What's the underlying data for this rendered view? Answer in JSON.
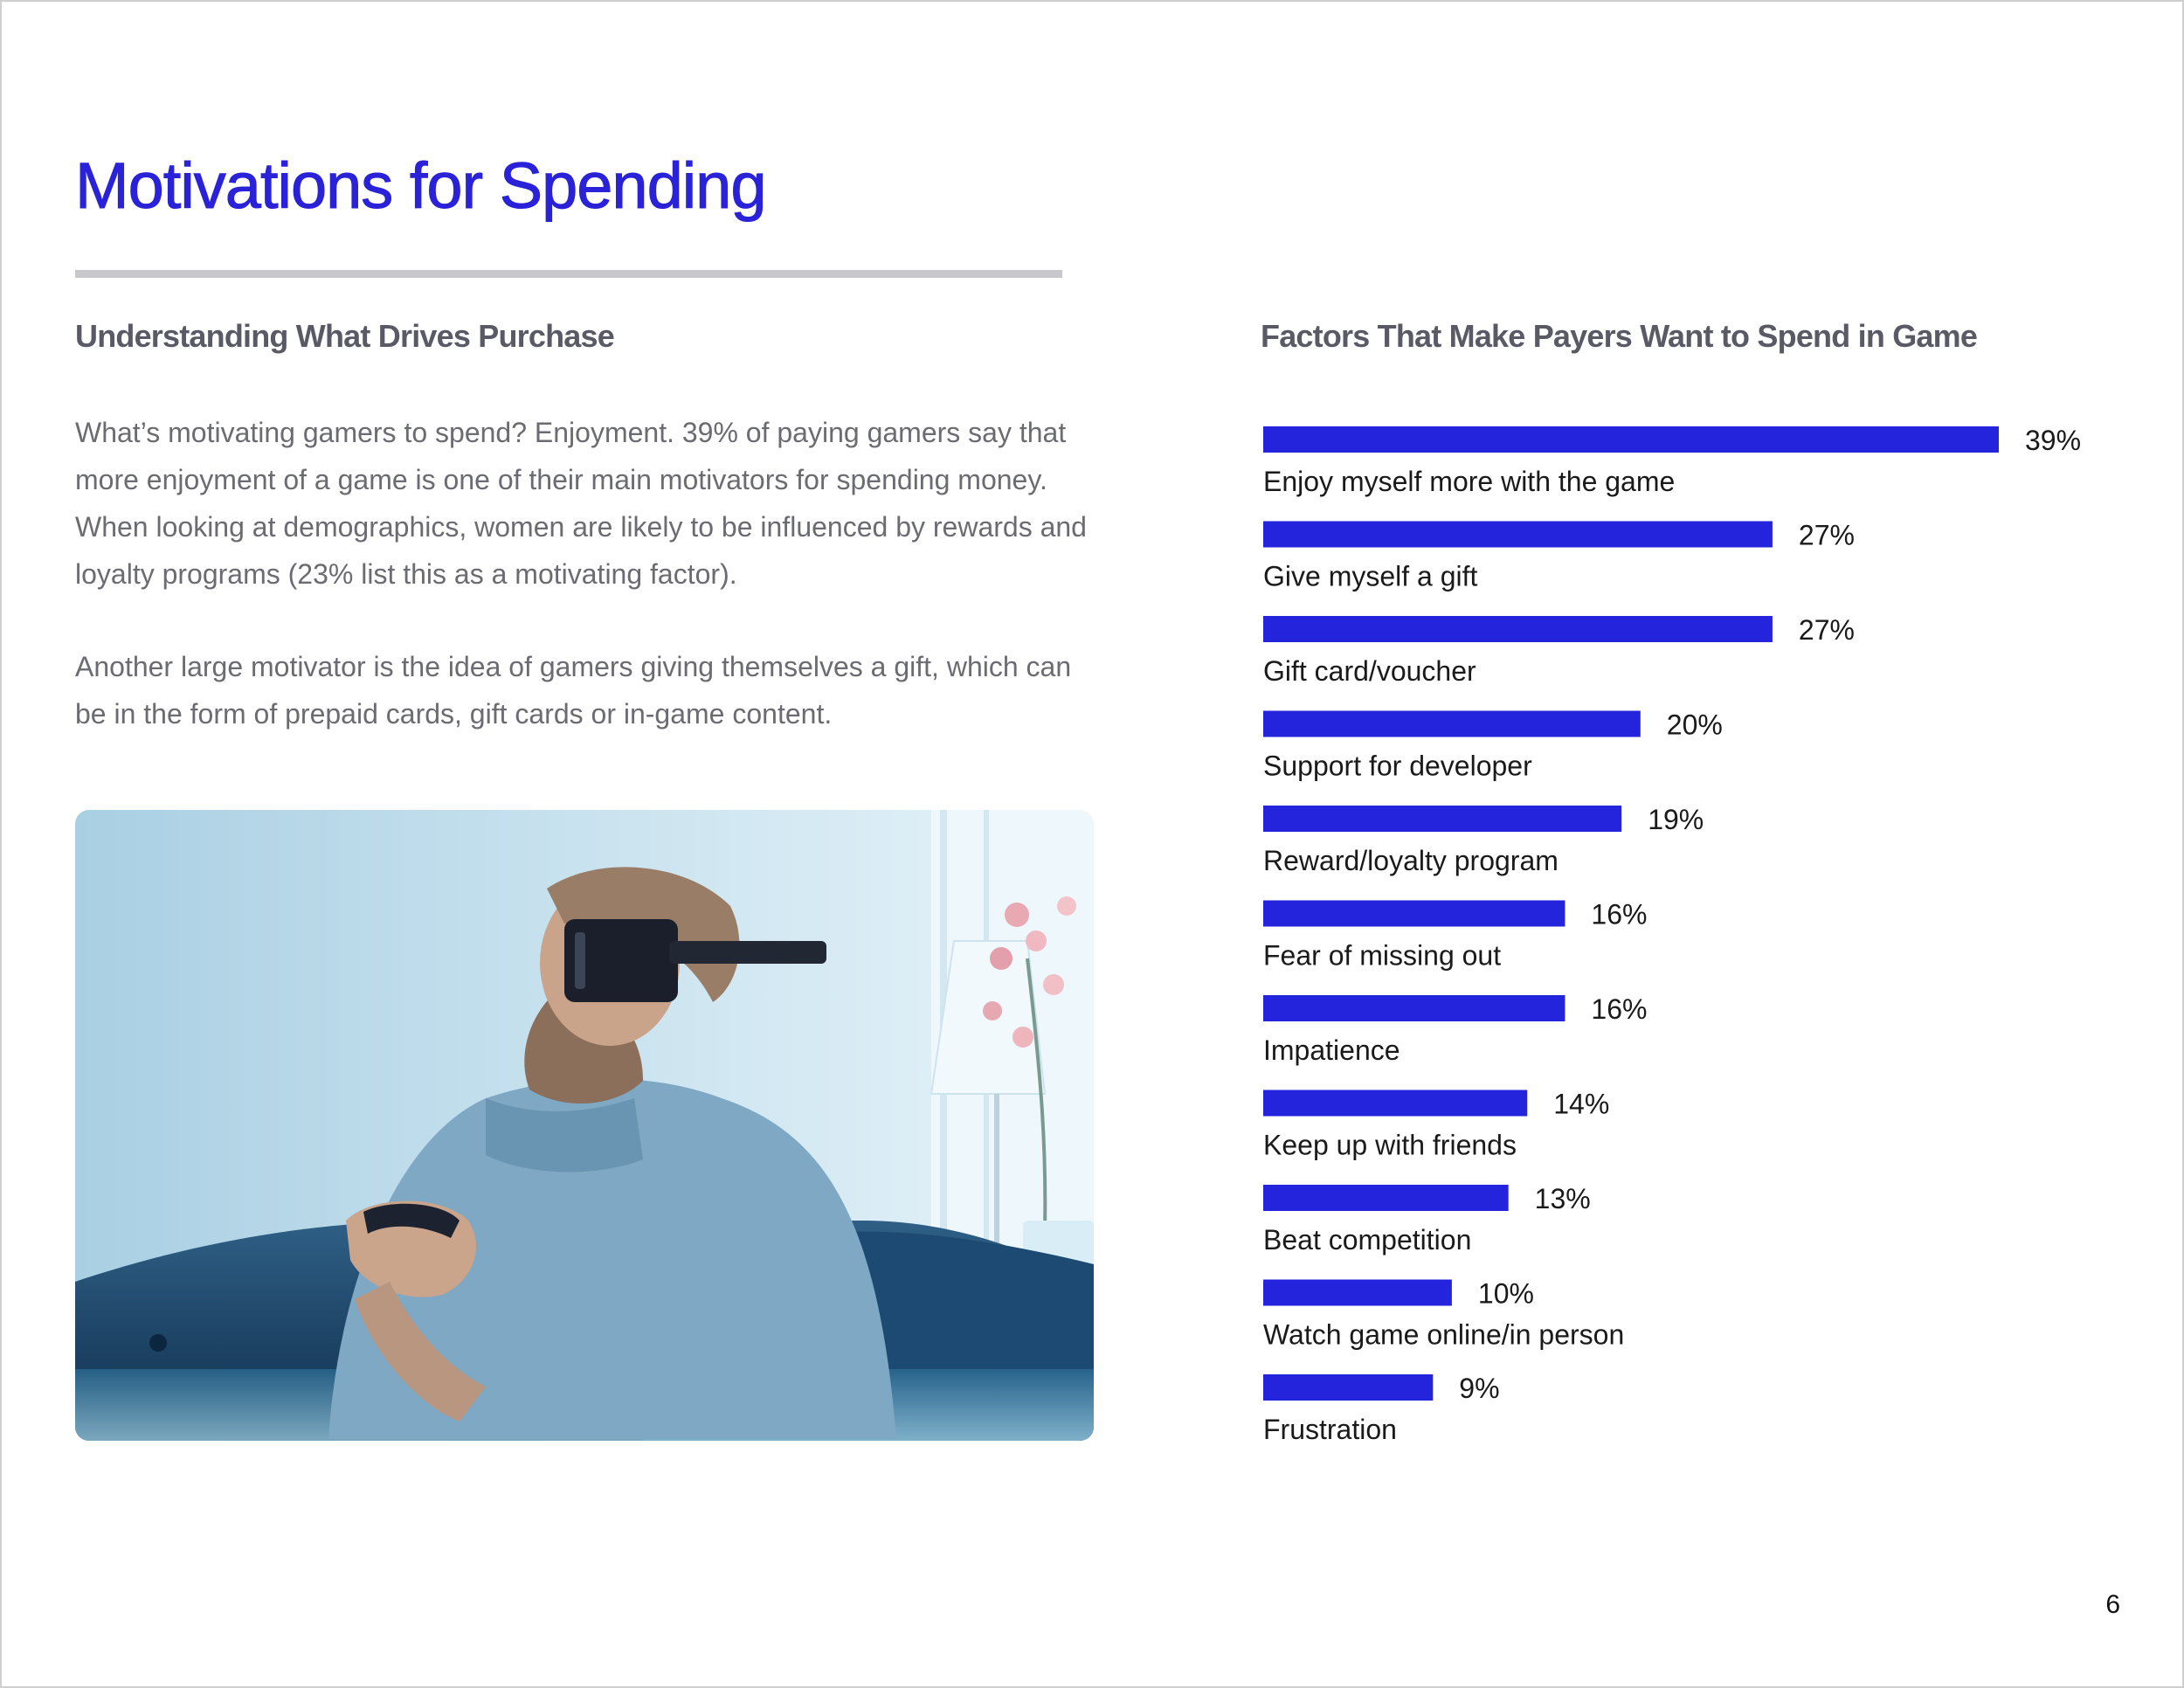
{
  "header": {
    "title": "Motivations for Spending"
  },
  "left_column": {
    "subheading": "Understanding What Drives Purchase",
    "paragraph1": "What’s motivating gamers to spend? Enjoyment. 39% of paying gamers say that more enjoyment of a game is one of their main motivators for spending money. When looking at demographics, women are likely to be influenced by rewards and loyalty programs (23% list this as a motivating factor).",
    "paragraph2": "Another large motivator is the idea of gamers giving themselves a gift, which can be in the form of prepaid cards, gift cards or in-game content."
  },
  "colors": {
    "accent": "#2a22d9",
    "bar": "#2424dd",
    "subheading": "#5a5a66",
    "body_text": "#6b6b72",
    "rule": "#c8c8cc"
  },
  "chart_data": {
    "type": "bar",
    "orientation": "horizontal",
    "title": "Factors That Make Payers Want to Spend in Game",
    "xlabel": "",
    "ylabel": "",
    "xlim": [
      0,
      39
    ],
    "grid": false,
    "value_suffix": "%",
    "categories": [
      "Enjoy myself more with the game",
      "Give myself a gift",
      "Gift card/voucher",
      "Support for developer",
      "Reward/loyalty program",
      "Fear of missing out",
      "Impatience",
      "Keep up with friends",
      "Beat competition",
      "Watch game online/in person",
      "Frustration"
    ],
    "values": [
      39,
      27,
      27,
      20,
      19,
      16,
      16,
      14,
      13,
      10,
      9
    ],
    "value_labels": [
      "39%",
      "27%",
      "27%",
      "20%",
      "19%",
      "16%",
      "16%",
      "14%",
      "13%",
      "10%",
      "9%"
    ]
  },
  "footer": {
    "page_number": "6"
  }
}
